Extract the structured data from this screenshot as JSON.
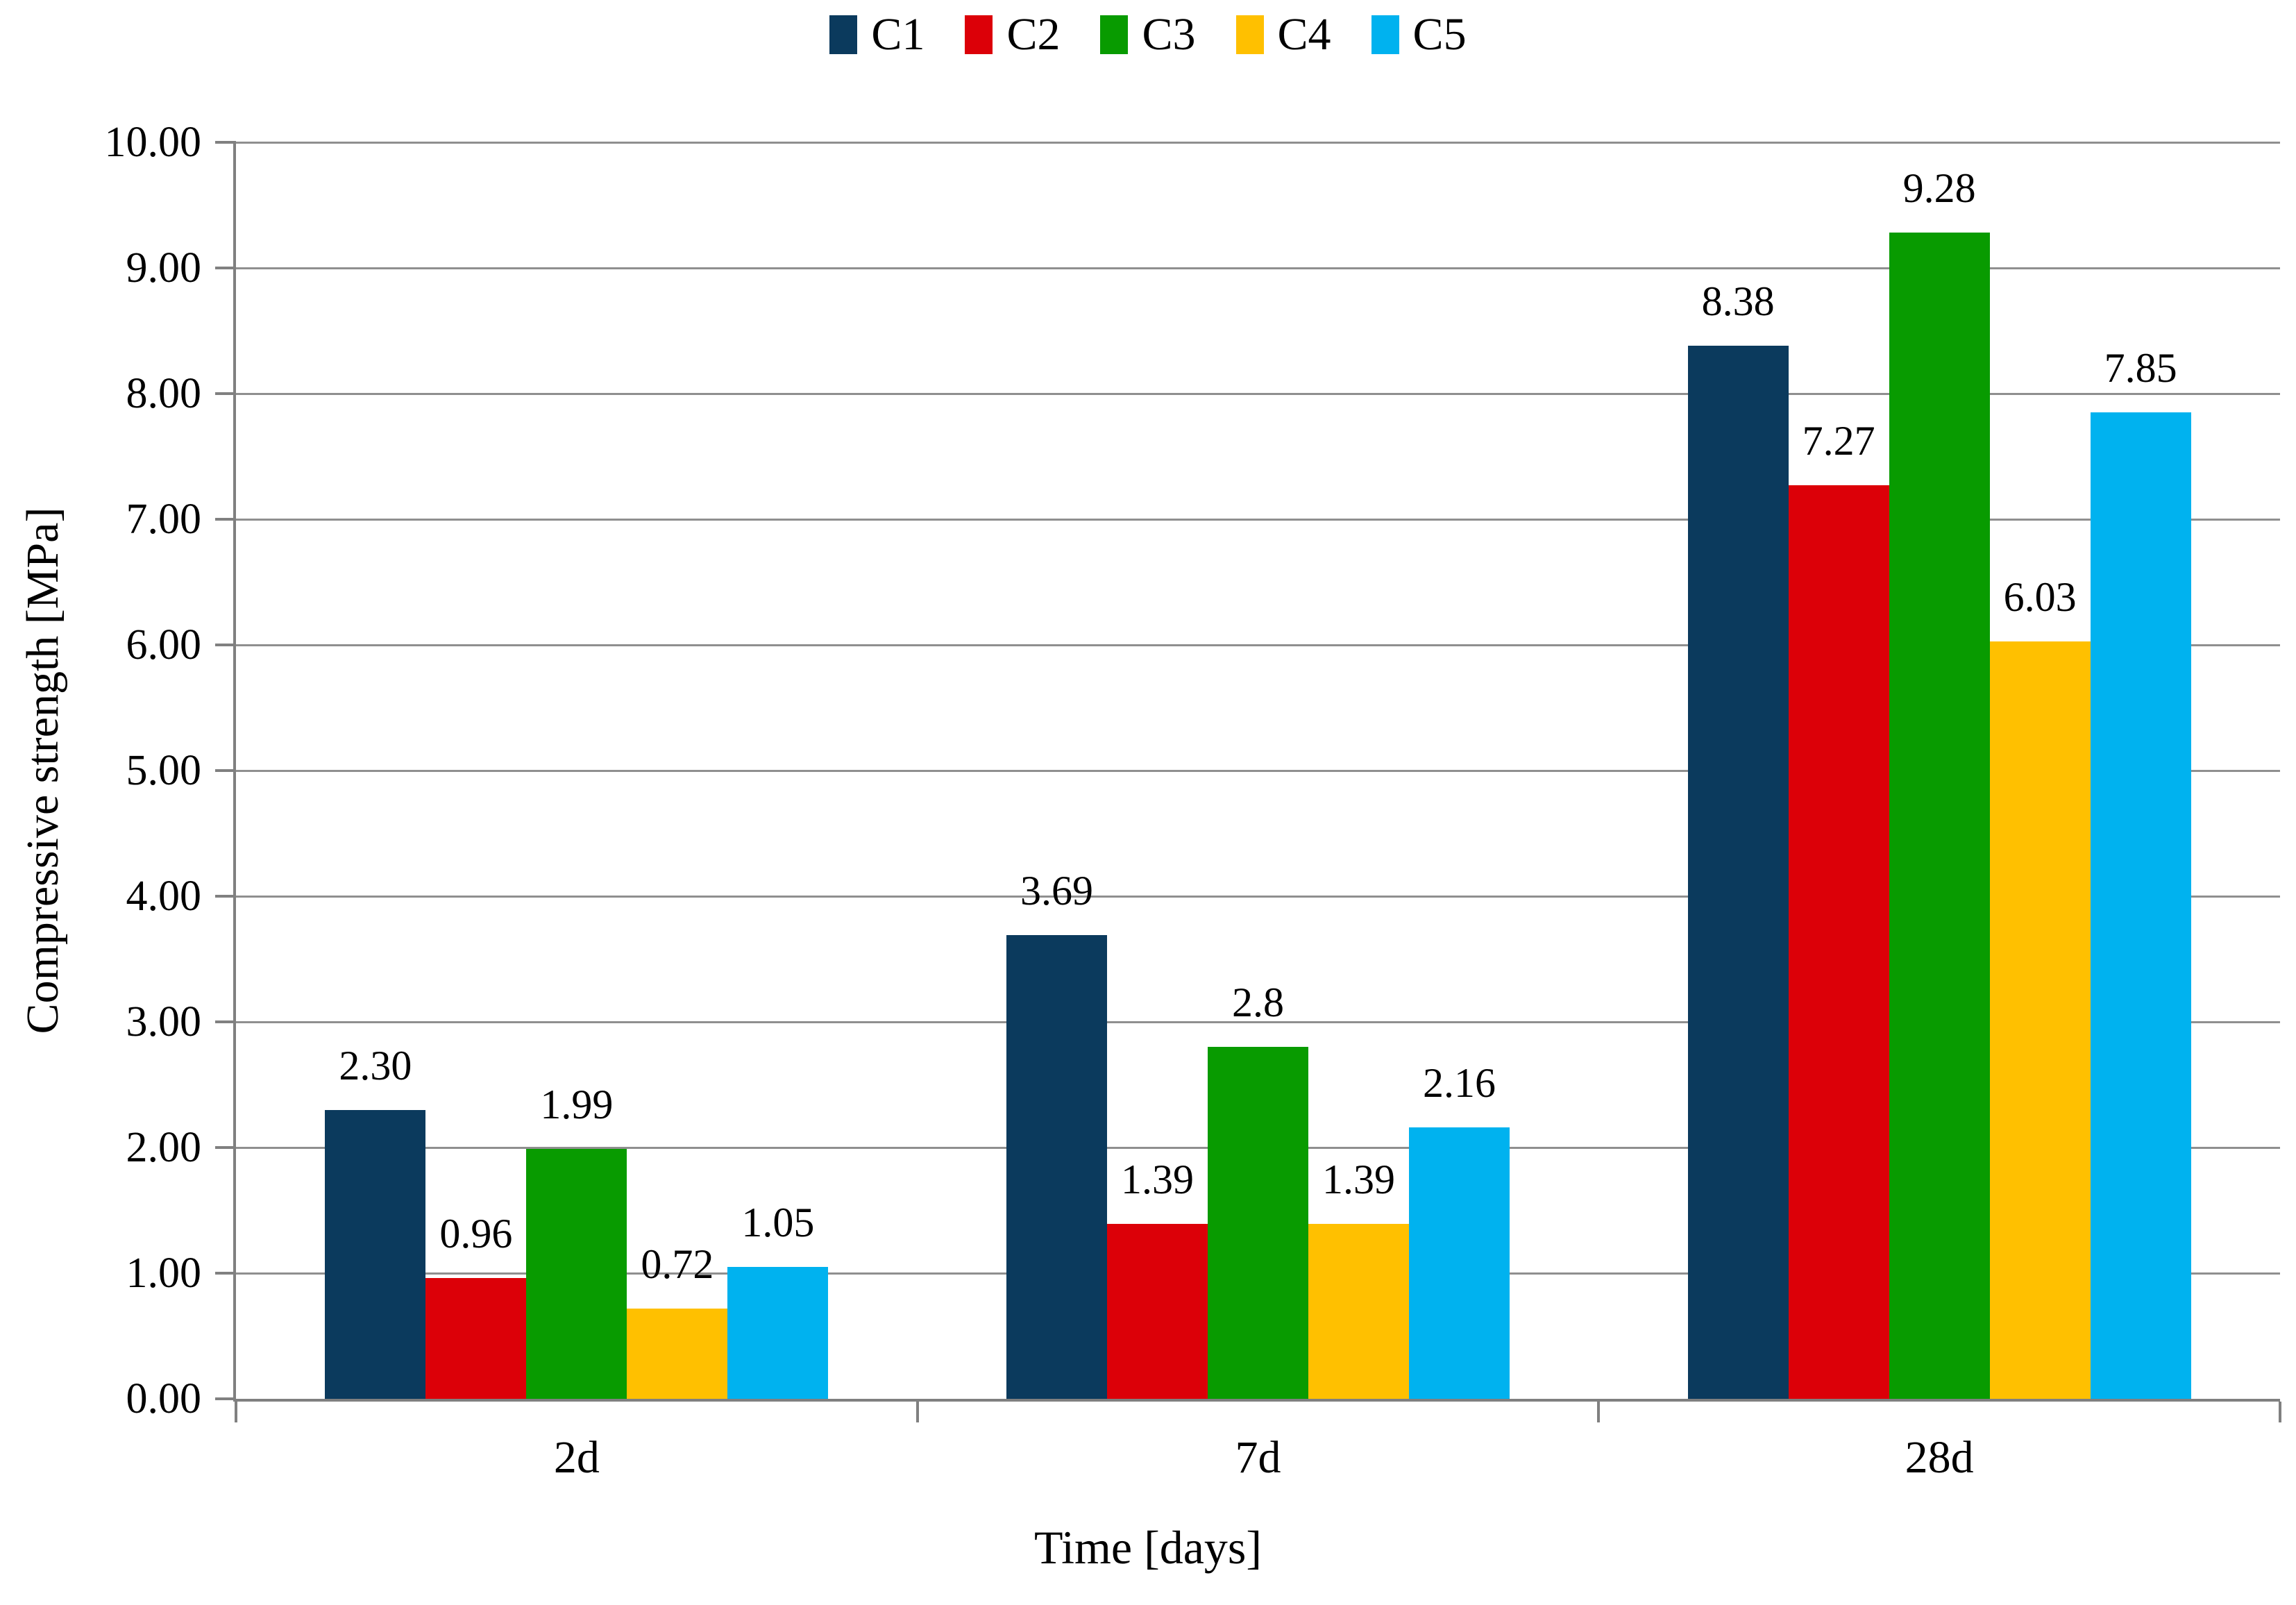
{
  "legend": {
    "items": [
      {
        "label": "C1",
        "color": "#0B3A5D"
      },
      {
        "label": "C2",
        "color": "#DC0008"
      },
      {
        "label": "C3",
        "color": "#089B00"
      },
      {
        "label": "C4",
        "color": "#FFC000"
      },
      {
        "label": "C5",
        "color": "#00B2EF"
      }
    ]
  },
  "y_axis": {
    "title": "Compressive strength [MPa]",
    "tick_labels": [
      "0.00",
      "1.00",
      "2.00",
      "3.00",
      "4.00",
      "5.00",
      "6.00",
      "7.00",
      "8.00",
      "9.00",
      "10.00"
    ]
  },
  "x_axis": {
    "title": "Time [days]",
    "category_labels": [
      "2d",
      "7d",
      "28d"
    ]
  },
  "chart_data": {
    "type": "bar",
    "categories": [
      "2d",
      "7d",
      "28d"
    ],
    "series": [
      {
        "name": "C1",
        "color": "#0B3A5D",
        "values": [
          2.3,
          3.69,
          8.38
        ],
        "data_labels": [
          "2.30",
          "3.69",
          "8.38"
        ]
      },
      {
        "name": "C2",
        "color": "#DC0008",
        "values": [
          0.96,
          1.39,
          7.27
        ],
        "data_labels": [
          "0.96",
          "1.39",
          "7.27"
        ]
      },
      {
        "name": "C3",
        "color": "#089B00",
        "values": [
          1.99,
          2.8,
          9.28
        ],
        "data_labels": [
          "1.99",
          "2.8",
          "9.28"
        ]
      },
      {
        "name": "C4",
        "color": "#FFC000",
        "values": [
          0.72,
          1.39,
          6.03
        ],
        "data_labels": [
          "0.72",
          "1.39",
          "6.03"
        ]
      },
      {
        "name": "C5",
        "color": "#00B2EF",
        "values": [
          1.05,
          2.16,
          7.85
        ],
        "data_labels": [
          "1.05",
          "2.16",
          "7.85"
        ]
      }
    ],
    "title": "",
    "xlabel": "Time [days]",
    "ylabel": "Compressive strength [MPa]",
    "ylim": [
      0,
      10
    ],
    "ytick_step": 1,
    "grid": true,
    "legend_position": "top"
  },
  "style_colors": {
    "grid": "#8F8F8F",
    "axis": "#808080",
    "text": "#000000",
    "background": "#FFFFFF"
  }
}
